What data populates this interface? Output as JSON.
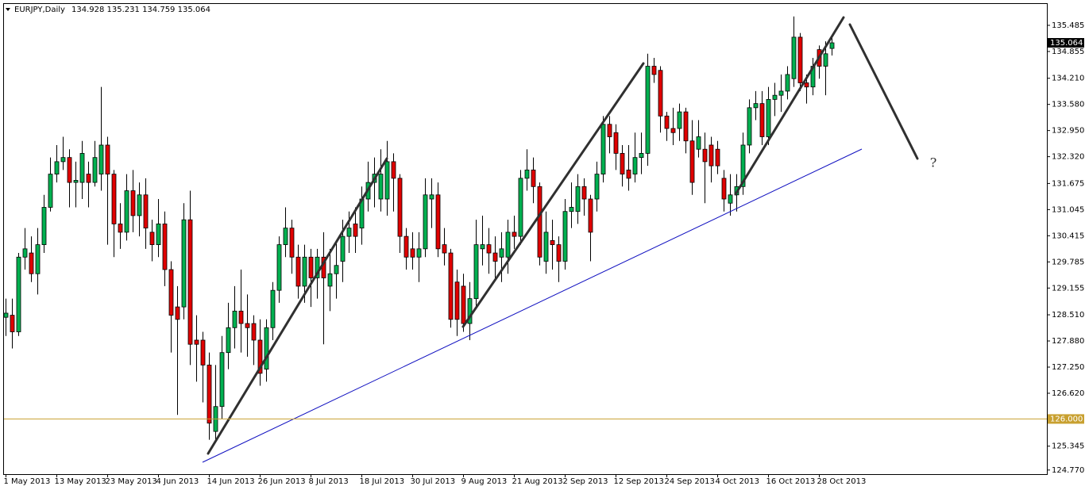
{
  "chart_data": {
    "type": "candlestick",
    "title": "EURJPY,Daily",
    "ohlc_label": "134.928 135.231 134.759 135.064",
    "annotation": "?",
    "up_color": "#00b050",
    "down_color": "#e00000",
    "ylim": [
      124.69,
      136.0
    ],
    "yticks": [
      135.485,
      134.855,
      {
        "value": 134.21,
        "label": "134.210"
      },
      {
        "value": 133.58,
        "label": "133.580"
      },
      {
        "value": 132.95,
        "label": "132.950"
      },
      {
        "value": 132.32,
        "label": "132.320"
      },
      131.675,
      131.045,
      130.415,
      129.785,
      129.155,
      {
        "value": 128.51,
        "label": "128.510"
      },
      {
        "value": 127.88,
        "label": "127.880"
      },
      {
        "value": 127.25,
        "label": "127.250"
      },
      {
        "value": 126.62,
        "label": "126.620"
      },
      125.345,
      {
        "value": 124.77,
        "label": "124.770"
      }
    ],
    "hline": {
      "value": 126,
      "label": "126.000",
      "color": "#c8a030"
    },
    "current_price": {
      "value": 135.064,
      "label": "135.064"
    },
    "categories": [
      "1 May 2013",
      null,
      null,
      null,
      null,
      null,
      null,
      null,
      "13 May 2013",
      null,
      null,
      null,
      null,
      null,
      null,
      null,
      "23 May 2013",
      null,
      null,
      null,
      null,
      null,
      null,
      null,
      "4 Jun 2013",
      null,
      null,
      null,
      null,
      null,
      null,
      null,
      "14 Jun 2013",
      null,
      null,
      null,
      null,
      null,
      null,
      null,
      "26 Jun 2013",
      null,
      null,
      null,
      null,
      null,
      null,
      null,
      "8 Jul 2013",
      null,
      null,
      null,
      null,
      null,
      null,
      null,
      "18 Jul 2013",
      null,
      null,
      null,
      null,
      null,
      null,
      null,
      "30 Jul 2013",
      null,
      null,
      null,
      null,
      null,
      null,
      null,
      "9 Aug 2013",
      null,
      null,
      null,
      null,
      null,
      null,
      null,
      "21 Aug 2013",
      null,
      null,
      null,
      null,
      null,
      null,
      null,
      "2 Sep 2013",
      null,
      null,
      null,
      null,
      null,
      null,
      null,
      "12 Sep 2013",
      null,
      null,
      null,
      null,
      null,
      null,
      null,
      "24 Sep 2013",
      null,
      null,
      null,
      null,
      null,
      null,
      null,
      "4 Oct 2013",
      null,
      null,
      null,
      null,
      null,
      null,
      null,
      "16 Oct 2013",
      null,
      null,
      null,
      null,
      null,
      null,
      null,
      "28 Oct 2013",
      null,
      null
    ],
    "open": [
      128.45,
      128.5,
      128.1,
      129.9,
      130.0,
      129.5,
      130.2,
      131.1,
      131.9,
      132.2,
      132.3,
      131.7,
      131.7,
      131.9,
      131.7,
      131.9,
      132.6,
      131.9,
      130.7,
      130.5,
      131.5,
      130.9,
      131.4,
      130.5,
      130.2,
      130.7,
      129.6,
      128.7,
      128.7,
      130.8,
      127.9,
      127.9,
      127.3,
      125.7,
      126.3,
      127.6,
      128.2,
      128.6,
      128.3,
      128.3,
      127.9,
      127.2,
      128.2,
      129.1,
      130.2,
      130.6,
      129.9,
      129.2,
      129.9,
      129.4,
      129.9,
      129.2,
      129.5,
      129.8,
      130.4,
      130.7,
      130.6,
      131.3,
      131.7,
      131.3,
      131.3,
      132.2,
      131.8,
      130.4,
      130.1,
      129.9,
      130.1,
      131.3,
      131.4,
      130.2,
      130.0,
      129.3,
      129.2,
      128.3,
      128.9,
      130.1,
      130.2,
      130.0,
      129.9,
      129.9,
      130.5,
      130.4,
      131.8,
      132.0,
      131.6,
      129.8,
      130.3,
      130.2,
      129.8,
      131.0,
      131.0,
      131.6,
      131.3,
      131.3,
      131.9,
      133.1,
      132.9,
      132.4,
      132.0,
      131.9,
      132.3,
      132.4,
      134.5,
      134.4,
      133.3,
      133.0,
      133.0,
      133.4,
      132.7,
      132.5,
      132.5,
      132.6,
      132.5,
      131.8,
      131.2,
      131.4,
      131.6,
      132.6,
      133.5,
      133.6,
      132.8,
      133.7,
      133.8,
      133.9,
      134.2,
      135.2,
      134.1,
      134.0,
      134.9,
      134.5,
      134.928
    ],
    "high": [
      128.9,
      128.9,
      130.0,
      130.6,
      130.4,
      130.6,
      131.4,
      132.3,
      132.6,
      132.8,
      132.5,
      132.2,
      132.7,
      132.2,
      132.7,
      134.0,
      132.8,
      132.0,
      131.2,
      131.9,
      132.0,
      131.7,
      131.8,
      130.8,
      131.3,
      131.0,
      129.8,
      129.2,
      131.2,
      131.5,
      128.5,
      128.1,
      127.6,
      127.3,
      128.0,
      128.8,
      129.2,
      129.6,
      129.0,
      128.5,
      128.4,
      128.4,
      129.3,
      130.4,
      131.1,
      130.8,
      130.2,
      130.2,
      130.1,
      130.1,
      130.5,
      130.1,
      130.3,
      130.8,
      131.0,
      131.1,
      131.6,
      132.2,
      132.3,
      132.5,
      132.7,
      132.4,
      131.9,
      130.6,
      130.5,
      130.5,
      131.8,
      131.8,
      131.7,
      130.6,
      130.1,
      129.6,
      129.5,
      129.3,
      130.8,
      130.9,
      130.6,
      130.4,
      130.5,
      130.8,
      130.9,
      132.0,
      132.5,
      132.3,
      131.7,
      131.0,
      130.8,
      130.4,
      131.3,
      131.7,
      131.9,
      131.8,
      131.4,
      132.2,
      133.3,
      133.3,
      133.1,
      132.6,
      132.6,
      132.9,
      132.9,
      134.8,
      134.7,
      134.5,
      133.4,
      133.5,
      133.6,
      133.5,
      133.2,
      133.2,
      132.9,
      132.8,
      132.7,
      132.0,
      131.9,
      131.9,
      132.9,
      133.7,
      133.9,
      133.9,
      134.0,
      134.1,
      134.3,
      134.5,
      135.7,
      135.3,
      134.3,
      134.7,
      135.0,
      135.1,
      135.231
    ],
    "low": [
      128.0,
      127.7,
      128.0,
      129.6,
      129.3,
      129.0,
      130.0,
      131.0,
      131.7,
      132.0,
      131.1,
      131.1,
      131.3,
      131.1,
      131.6,
      131.5,
      130.2,
      129.9,
      130.1,
      130.3,
      130.5,
      130.4,
      130.1,
      129.8,
      129.9,
      129.2,
      127.6,
      126.1,
      128.4,
      127.3,
      126.9,
      126.4,
      125.5,
      125.5,
      126.0,
      127.2,
      127.7,
      127.6,
      127.5,
      127.3,
      126.8,
      126.9,
      127.9,
      128.8,
      129.9,
      129.5,
      128.9,
      128.8,
      128.7,
      128.9,
      127.8,
      128.6,
      128.9,
      129.3,
      130.0,
      130.0,
      130.2,
      131.0,
      131.1,
      131.0,
      130.9,
      131.0,
      130.0,
      129.6,
      129.6,
      129.3,
      129.9,
      130.6,
      129.9,
      129.7,
      128.2,
      128.0,
      128.1,
      127.9,
      128.7,
      129.7,
      129.5,
      129.4,
      129.3,
      129.5,
      130.1,
      130.2,
      131.5,
      131.2,
      129.7,
      129.5,
      129.6,
      129.3,
      129.6,
      130.6,
      130.7,
      130.9,
      129.8,
      131.0,
      131.7,
      132.4,
      132.0,
      131.6,
      131.5,
      131.7,
      131.9,
      132.1,
      134.1,
      132.9,
      132.7,
      132.6,
      132.7,
      132.4,
      131.4,
      132.3,
      131.2,
      131.7,
      131.9,
      131.0,
      130.9,
      131.0,
      131.4,
      132.4,
      133.2,
      132.6,
      132.6,
      133.3,
      133.4,
      133.7,
      134.0,
      133.9,
      133.6,
      133.8,
      134.2,
      133.8,
      134.759
    ],
    "close": [
      128.55,
      128.1,
      129.9,
      130.1,
      129.5,
      130.2,
      131.1,
      131.9,
      132.2,
      132.3,
      131.7,
      131.75,
      132.4,
      131.7,
      132.3,
      132.6,
      131.9,
      130.7,
      130.5,
      131.5,
      130.9,
      131.4,
      130.6,
      130.2,
      130.7,
      129.6,
      128.5,
      128.4,
      130.8,
      127.8,
      127.8,
      127.3,
      125.9,
      126.3,
      127.6,
      128.2,
      128.6,
      128.3,
      128.2,
      127.9,
      127.1,
      128.2,
      129.1,
      130.2,
      130.6,
      129.9,
      129.2,
      129.9,
      129.4,
      129.9,
      129.4,
      129.5,
      129.7,
      130.4,
      130.6,
      130.4,
      131.3,
      131.7,
      131.9,
      131.9,
      132.2,
      131.8,
      130.4,
      129.9,
      129.9,
      130.1,
      131.4,
      131.4,
      130.1,
      130.0,
      128.4,
      128.4,
      128.3,
      128.9,
      130.2,
      130.2,
      130.0,
      129.8,
      130.1,
      130.5,
      130.4,
      131.8,
      132.0,
      131.6,
      129.9,
      130.5,
      130.2,
      129.8,
      131.0,
      131.1,
      131.6,
      131.3,
      130.5,
      131.9,
      133.1,
      132.8,
      132.4,
      131.9,
      131.8,
      132.3,
      132.4,
      134.5,
      134.3,
      133.3,
      133.0,
      132.9,
      133.4,
      132.7,
      131.7,
      132.8,
      132.2,
      132.1,
      132.1,
      131.3,
      131.4,
      131.6,
      132.6,
      133.5,
      133.6,
      132.8,
      133.7,
      133.8,
      133.9,
      134.3,
      135.2,
      134.1,
      134.0,
      134.5,
      134.5,
      134.8,
      135.064
    ]
  }
}
